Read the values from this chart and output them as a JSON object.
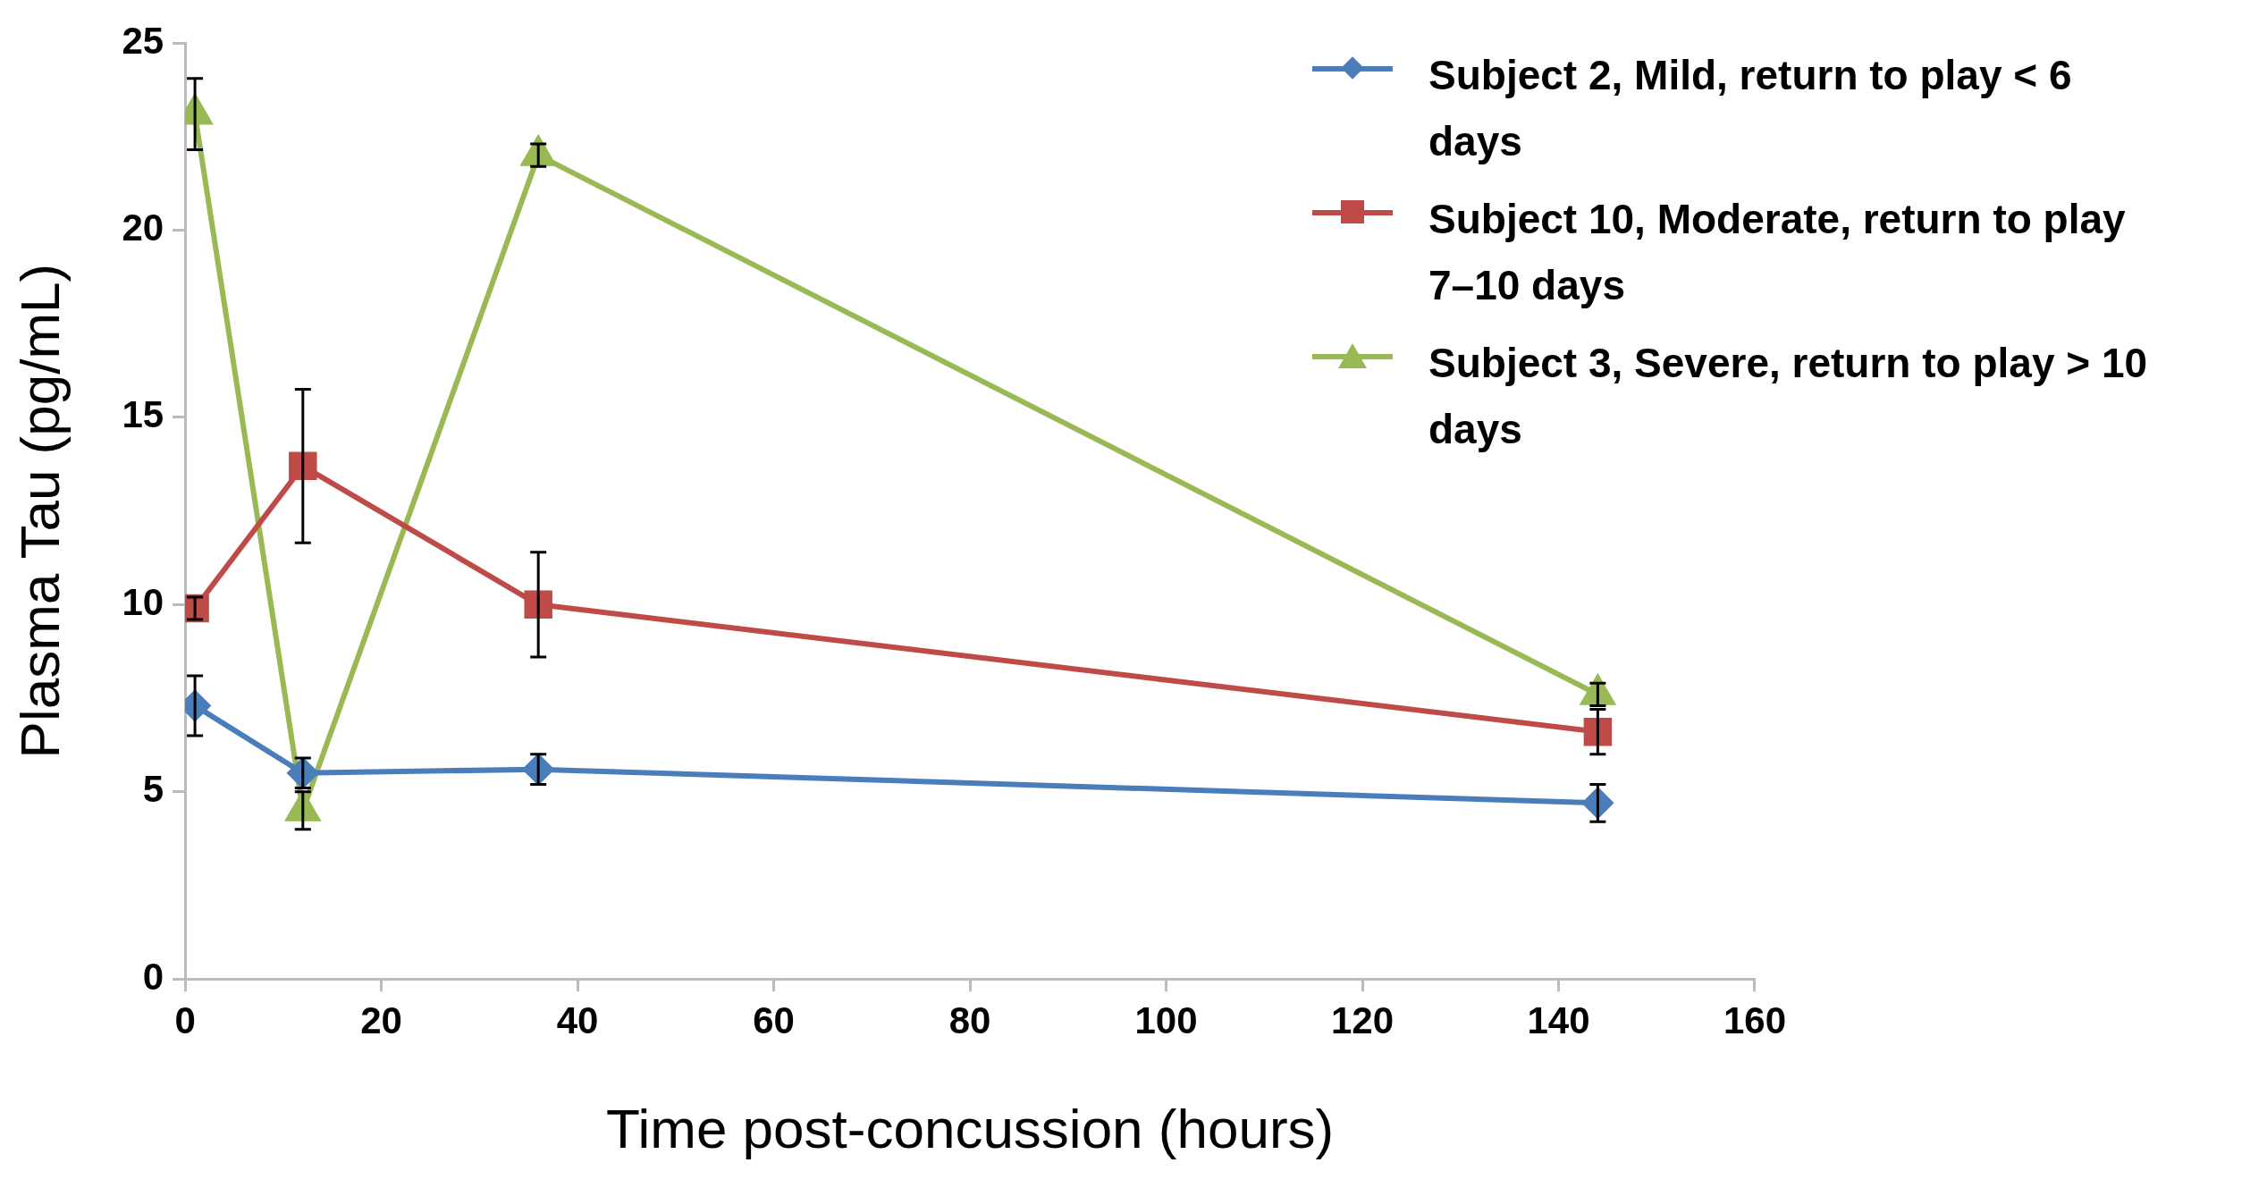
{
  "chart_data": {
    "type": "line",
    "xlabel": "Time post-concussion (hours)",
    "ylabel": "Plasma Tau (pg/mL)",
    "x": [
      1,
      12,
      36,
      144
    ],
    "xlim": [
      0,
      160
    ],
    "xticks": [
      0,
      20,
      40,
      60,
      80,
      100,
      120,
      140,
      160
    ],
    "ylim": [
      0,
      25
    ],
    "yticks": [
      0,
      5,
      10,
      15,
      20,
      25
    ],
    "grid": false,
    "legend": "top right",
    "line_style": "solid",
    "series": [
      {
        "name": "Subject 2, Mild, return to play < 6 days",
        "color": "#4a7ebb",
        "marker": "diamond",
        "values": [
          7.3,
          5.5,
          5.6,
          4.7
        ],
        "errors": [
          0.8,
          0.4,
          0.4,
          0.5
        ]
      },
      {
        "name": "Subject 10, Moderate, return to play 7–10 days",
        "color": "#be4b48",
        "marker": "square",
        "values": [
          9.9,
          13.7,
          10.0,
          6.6
        ],
        "errors": [
          0.3,
          2.05,
          1.4,
          0.6
        ]
      },
      {
        "name": "Subject 3, Severe, return to play > 10 days",
        "color": "#98b954",
        "marker": "triangle",
        "values": [
          23.1,
          4.5,
          22.0,
          7.6
        ],
        "errors": [
          0.95,
          0.5,
          0.3,
          0.3
        ]
      }
    ]
  }
}
